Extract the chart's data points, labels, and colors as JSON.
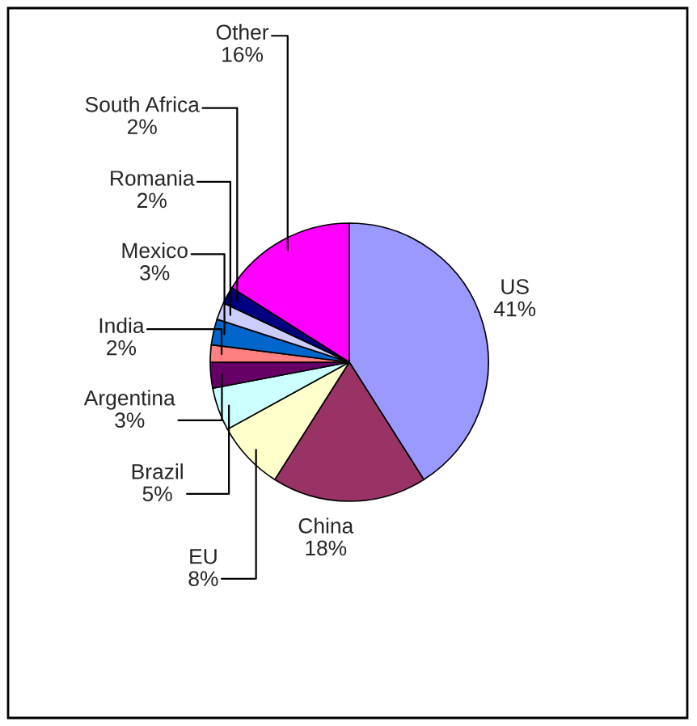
{
  "chart_data": {
    "type": "pie",
    "categories": [
      "US",
      "China",
      "EU",
      "Brazil",
      "Argentina",
      "India",
      "Mexico",
      "Romania",
      "South Africa",
      "Other"
    ],
    "values": [
      41,
      18,
      8,
      5,
      3,
      2,
      3,
      2,
      2,
      16
    ],
    "colors": [
      "#9999ff",
      "#993366",
      "#ffffcc",
      "#ccffff",
      "#660066",
      "#ff8080",
      "#0066cc",
      "#ccccff",
      "#000080",
      "#ff00ff"
    ],
    "value_labels": [
      "41%",
      "18%",
      "8%",
      "5%",
      "3%",
      "2%",
      "3%",
      "2%",
      "2%",
      "16%"
    ]
  }
}
